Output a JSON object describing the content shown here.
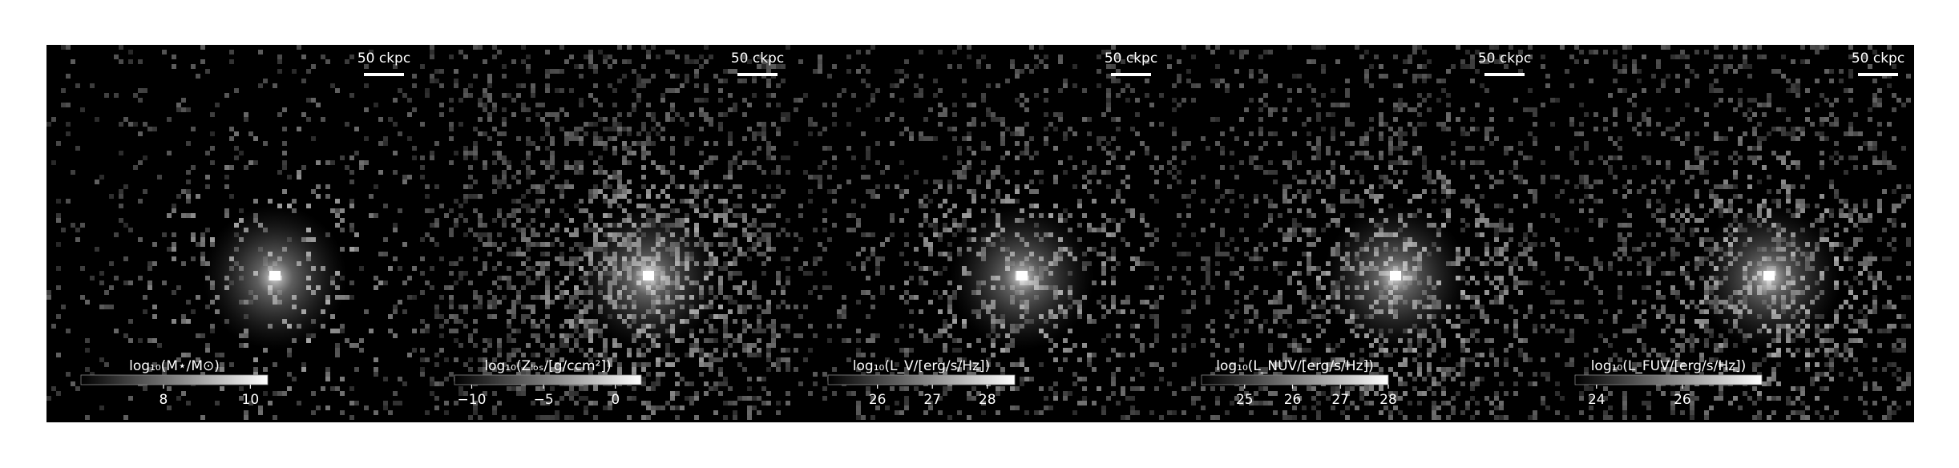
{
  "chart_data": [
    {
      "type": "image",
      "scale_bar": "50 ckpc",
      "colorbar": {
        "label": "log₁₀(M⋆/M⊙)",
        "clim": [
          6.1,
          10.4
        ],
        "ticks": [
          8,
          10
        ]
      }
    },
    {
      "type": "image",
      "scale_bar": "50 ckpc",
      "colorbar": {
        "label": "log₁₀(Zₗₒₛ/[g/ccm²])",
        "clim": [
          -11.2,
          1.8
        ],
        "ticks": [
          {
            "value": -10,
            "label": "−10"
          },
          {
            "value": -5,
            "label": "−5"
          },
          0
        ]
      }
    },
    {
      "type": "image",
      "scale_bar": "50 ckpc",
      "colorbar": {
        "label": "log₁₀(L_V/[erg/s/Hz])",
        "clim": [
          25.1,
          28.5
        ],
        "ticks": [
          26,
          27,
          28
        ]
      }
    },
    {
      "type": "image",
      "scale_bar": "50 ckpc",
      "colorbar": {
        "label": "log₁₀(L_NUV/[erg/s/Hz])",
        "clim": [
          24.1,
          28.0
        ],
        "ticks": [
          25,
          26,
          27,
          28
        ]
      }
    },
    {
      "type": "image",
      "scale_bar": "50 ckpc",
      "colorbar": {
        "label": "log₁₀(L_FUV/[erg/s/Hz])",
        "clim": [
          23.5,
          27.85
        ],
        "ticks": [
          24,
          26
        ]
      }
    }
  ]
}
